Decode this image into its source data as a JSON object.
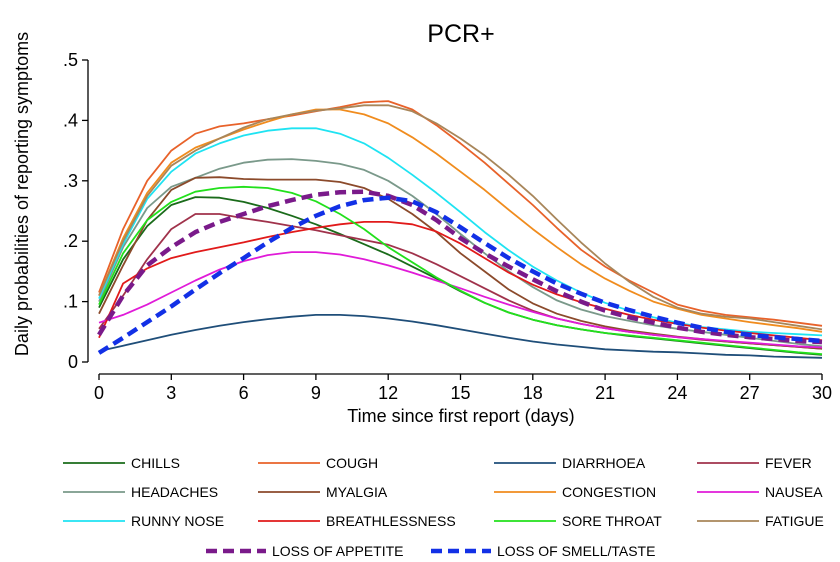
{
  "chart_data": {
    "type": "line",
    "title": "PCR+",
    "xlabel": "Time since first report (days)",
    "ylabel": "Daily probabilities of reporting symptoms",
    "xlim": [
      0,
      30
    ],
    "ylim": [
      0,
      0.5
    ],
    "xticks": [
      0,
      3,
      6,
      9,
      12,
      15,
      18,
      21,
      24,
      27,
      30
    ],
    "xtick_labels": [
      "0",
      "3",
      "6",
      "9",
      "12",
      "15",
      "18",
      "21",
      "24",
      "27",
      "30"
    ],
    "yticks": [
      0,
      0.1,
      0.2,
      0.3,
      0.4,
      0.5
    ],
    "ytick_labels": [
      "0",
      ".1",
      ".2",
      ".3",
      ".4",
      ".5"
    ],
    "grid": false,
    "legend_position": "bottom",
    "x": [
      0,
      1,
      2,
      3,
      4,
      5,
      6,
      7,
      8,
      9,
      10,
      11,
      12,
      13,
      14,
      15,
      16,
      17,
      18,
      19,
      20,
      21,
      22,
      23,
      24,
      25,
      26,
      27,
      28,
      29,
      30
    ],
    "series": [
      {
        "name": "CHILLS",
        "color": "#1a6b1a",
        "dashed": false,
        "values": [
          0.09,
          0.17,
          0.225,
          0.26,
          0.273,
          0.272,
          0.265,
          0.255,
          0.242,
          0.228,
          0.212,
          0.195,
          0.178,
          0.158,
          0.138,
          0.117,
          0.098,
          0.082,
          0.07,
          0.061,
          0.054,
          0.048,
          0.043,
          0.039,
          0.035,
          0.031,
          0.027,
          0.023,
          0.019,
          0.015,
          0.012
        ]
      },
      {
        "name": "COUGH",
        "color": "#e8622a",
        "dashed": false,
        "values": [
          0.115,
          0.22,
          0.3,
          0.35,
          0.378,
          0.39,
          0.395,
          0.402,
          0.408,
          0.415,
          0.422,
          0.43,
          0.432,
          0.418,
          0.392,
          0.362,
          0.33,
          0.295,
          0.26,
          0.222,
          0.186,
          0.158,
          0.135,
          0.115,
          0.095,
          0.085,
          0.078,
          0.074,
          0.07,
          0.065,
          0.06
        ]
      },
      {
        "name": "DIARRHOEA",
        "color": "#1f4e79",
        "dashed": false,
        "values": [
          0.018,
          0.027,
          0.036,
          0.045,
          0.053,
          0.06,
          0.066,
          0.071,
          0.075,
          0.078,
          0.078,
          0.076,
          0.072,
          0.067,
          0.061,
          0.054,
          0.047,
          0.04,
          0.034,
          0.029,
          0.025,
          0.021,
          0.019,
          0.017,
          0.016,
          0.014,
          0.012,
          0.011,
          0.009,
          0.008,
          0.007
        ]
      },
      {
        "name": "FEVER",
        "color": "#a0324b",
        "dashed": false,
        "values": [
          0.055,
          0.11,
          0.17,
          0.22,
          0.245,
          0.245,
          0.238,
          0.232,
          0.225,
          0.218,
          0.21,
          0.202,
          0.194,
          0.18,
          0.162,
          0.142,
          0.122,
          0.102,
          0.085,
          0.072,
          0.063,
          0.056,
          0.05,
          0.045,
          0.041,
          0.037,
          0.034,
          0.031,
          0.028,
          0.025,
          0.022
        ]
      },
      {
        "name": "HEADACHES",
        "color": "#7a998a",
        "dashed": false,
        "values": [
          0.1,
          0.19,
          0.255,
          0.29,
          0.305,
          0.32,
          0.33,
          0.335,
          0.336,
          0.333,
          0.328,
          0.318,
          0.3,
          0.275,
          0.245,
          0.212,
          0.18,
          0.15,
          0.124,
          0.102,
          0.087,
          0.076,
          0.068,
          0.061,
          0.055,
          0.05,
          0.045,
          0.04,
          0.035,
          0.03,
          0.026
        ]
      },
      {
        "name": "MYALGIA",
        "color": "#8b4a2b",
        "dashed": false,
        "values": [
          0.08,
          0.16,
          0.235,
          0.285,
          0.305,
          0.306,
          0.303,
          0.302,
          0.302,
          0.302,
          0.298,
          0.288,
          0.27,
          0.245,
          0.215,
          0.18,
          0.15,
          0.12,
          0.097,
          0.08,
          0.068,
          0.059,
          0.052,
          0.047,
          0.042,
          0.038,
          0.034,
          0.031,
          0.028,
          0.025,
          0.022
        ]
      },
      {
        "name": "CONGESTION",
        "color": "#f08c1e",
        "dashed": false,
        "values": [
          0.11,
          0.205,
          0.28,
          0.33,
          0.355,
          0.37,
          0.385,
          0.398,
          0.41,
          0.418,
          0.418,
          0.41,
          0.395,
          0.372,
          0.345,
          0.315,
          0.285,
          0.252,
          0.22,
          0.19,
          0.162,
          0.138,
          0.118,
          0.1,
          0.088,
          0.078,
          0.072,
          0.066,
          0.061,
          0.056,
          0.05
        ]
      },
      {
        "name": "NAUSEA",
        "color": "#e01bd8",
        "dashed": false,
        "values": [
          0.065,
          0.078,
          0.095,
          0.115,
          0.135,
          0.153,
          0.167,
          0.177,
          0.182,
          0.182,
          0.178,
          0.17,
          0.16,
          0.148,
          0.135,
          0.122,
          0.108,
          0.095,
          0.083,
          0.072,
          0.063,
          0.056,
          0.05,
          0.045,
          0.041,
          0.038,
          0.035,
          0.032,
          0.029,
          0.026,
          0.024
        ]
      },
      {
        "name": "RUNNY NOSE",
        "color": "#1fe3f2",
        "dashed": false,
        "values": [
          0.105,
          0.195,
          0.27,
          0.315,
          0.345,
          0.362,
          0.375,
          0.383,
          0.387,
          0.387,
          0.378,
          0.362,
          0.338,
          0.31,
          0.28,
          0.248,
          0.215,
          0.185,
          0.158,
          0.135,
          0.115,
          0.098,
          0.085,
          0.074,
          0.065,
          0.058,
          0.054,
          0.05,
          0.048,
          0.046,
          0.044
        ]
      },
      {
        "name": "BREATHLESSNESS",
        "color": "#e11a1a",
        "dashed": false,
        "values": [
          0.04,
          0.13,
          0.155,
          0.172,
          0.182,
          0.19,
          0.198,
          0.207,
          0.215,
          0.222,
          0.228,
          0.232,
          0.232,
          0.228,
          0.216,
          0.196,
          0.172,
          0.148,
          0.128,
          0.112,
          0.099,
          0.088,
          0.078,
          0.07,
          0.063,
          0.057,
          0.052,
          0.048,
          0.044,
          0.04,
          0.036
        ]
      },
      {
        "name": "SORE THROAT",
        "color": "#22e01c",
        "dashed": false,
        "values": [
          0.095,
          0.18,
          0.235,
          0.265,
          0.282,
          0.288,
          0.29,
          0.288,
          0.28,
          0.266,
          0.245,
          0.22,
          0.19,
          0.165,
          0.14,
          0.118,
          0.098,
          0.082,
          0.07,
          0.061,
          0.054,
          0.048,
          0.044,
          0.04,
          0.036,
          0.032,
          0.028,
          0.024,
          0.02,
          0.016,
          0.013
        ]
      },
      {
        "name": "FATIGUE",
        "color": "#a8865a",
        "dashed": false,
        "values": [
          0.11,
          0.2,
          0.275,
          0.325,
          0.35,
          0.37,
          0.388,
          0.402,
          0.41,
          0.416,
          0.42,
          0.425,
          0.425,
          0.415,
          0.395,
          0.37,
          0.342,
          0.31,
          0.275,
          0.236,
          0.198,
          0.163,
          0.133,
          0.108,
          0.09,
          0.08,
          0.075,
          0.072,
          0.066,
          0.06,
          0.054
        ]
      },
      {
        "name": "LOSS OF APPETITE",
        "color": "#7a1a8a",
        "dashed": true,
        "values": [
          0.045,
          0.11,
          0.16,
          0.19,
          0.215,
          0.232,
          0.245,
          0.258,
          0.268,
          0.277,
          0.281,
          0.282,
          0.275,
          0.26,
          0.235,
          0.205,
          0.18,
          0.158,
          0.137,
          0.117,
          0.1,
          0.085,
          0.074,
          0.065,
          0.057,
          0.05,
          0.045,
          0.041,
          0.038,
          0.035,
          0.033
        ]
      },
      {
        "name": "LOSS OF SMELL/TASTE",
        "color": "#1230e6",
        "dashed": true,
        "values": [
          0.015,
          0.04,
          0.066,
          0.092,
          0.12,
          0.147,
          0.172,
          0.198,
          0.222,
          0.242,
          0.258,
          0.268,
          0.272,
          0.266,
          0.248,
          0.223,
          0.197,
          0.172,
          0.15,
          0.13,
          0.113,
          0.098,
          0.086,
          0.075,
          0.065,
          0.057,
          0.05,
          0.045,
          0.041,
          0.038,
          0.035
        ]
      }
    ]
  }
}
